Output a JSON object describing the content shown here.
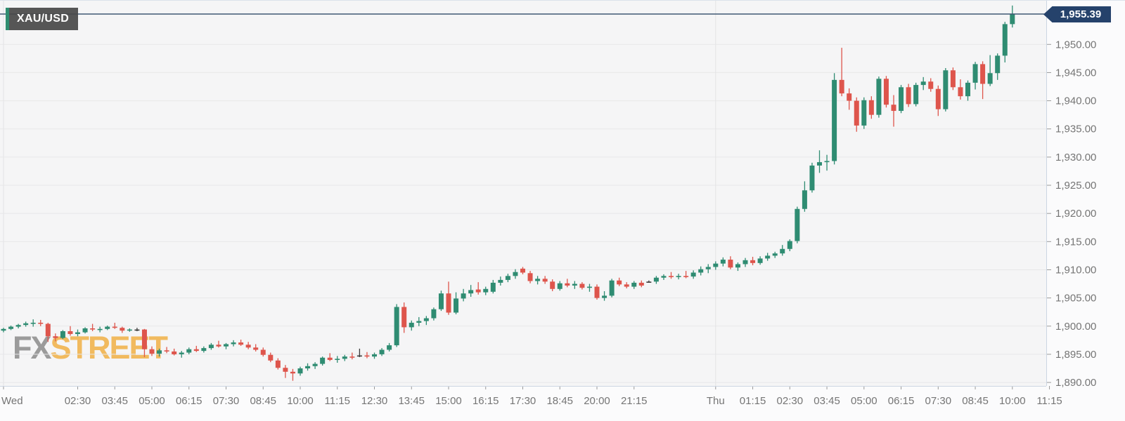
{
  "chart": {
    "symbol": "XAU/USD",
    "last_price": "1,955.39",
    "watermark": {
      "fx": "FX",
      "street": "STREET"
    }
  },
  "colors": {
    "up": "#2f8c72",
    "down": "#de554c",
    "neutral": "#3a3a3a",
    "price_line": "#3f5873",
    "price_badge_bg": "#25426b",
    "grid": "#e8e8e9",
    "day_grid": "#e3e3e5",
    "axis_text": "#757575",
    "tick": "#9a9a9a",
    "border": "#ccd6e2",
    "plot_bg": "#f5f5f6",
    "outer_bg": "#fbfbfc",
    "symbol_badge_bg": "#484848",
    "symbol_badge_accent": "#2f8d70",
    "watermark_gray": "#9b9b9b",
    "watermark_orange": "#f1ba5f"
  },
  "chart_data": {
    "type": "candlestick",
    "symbol": "XAU/USD",
    "timeframe_minutes": 15,
    "last_price": 1955.39,
    "y_axis": {
      "side": "right",
      "min": 1888.0,
      "max": 1957.8,
      "tick_step": 5,
      "ticks": [
        {
          "value": 1950,
          "label": "1,950.00"
        },
        {
          "value": 1945,
          "label": "1,945.00"
        },
        {
          "value": 1940,
          "label": "1,940.00"
        },
        {
          "value": 1935,
          "label": "1,935.00"
        },
        {
          "value": 1930,
          "label": "1,930.00"
        },
        {
          "value": 1925,
          "label": "1,925.00"
        },
        {
          "value": 1920,
          "label": "1,920.00"
        },
        {
          "value": 1915,
          "label": "1,915.00"
        },
        {
          "value": 1910,
          "label": "1,910.00"
        },
        {
          "value": 1905,
          "label": "1,905.00"
        },
        {
          "value": 1900,
          "label": "1,900.00"
        },
        {
          "value": 1895,
          "label": "1,895.00"
        },
        {
          "value": 1890,
          "label": "1,890.00"
        }
      ]
    },
    "x_labels": [
      {
        "label": "Wed",
        "index": 0
      },
      {
        "label": "02:30",
        "index": 10
      },
      {
        "label": "03:45",
        "index": 15
      },
      {
        "label": "05:00",
        "index": 20
      },
      {
        "label": "06:15",
        "index": 25
      },
      {
        "label": "07:30",
        "index": 30
      },
      {
        "label": "08:45",
        "index": 35
      },
      {
        "label": "10:00",
        "index": 40
      },
      {
        "label": "11:15",
        "index": 45
      },
      {
        "label": "12:30",
        "index": 50
      },
      {
        "label": "13:45",
        "index": 55
      },
      {
        "label": "15:00",
        "index": 60
      },
      {
        "label": "16:15",
        "index": 65
      },
      {
        "label": "17:30",
        "index": 70
      },
      {
        "label": "18:45",
        "index": 75
      },
      {
        "label": "20:00",
        "index": 80
      },
      {
        "label": "21:15",
        "index": 85
      },
      {
        "label": "Thu",
        "index": 96
      },
      {
        "label": "01:15",
        "index": 101
      },
      {
        "label": "02:30",
        "index": 106
      },
      {
        "label": "03:45",
        "index": 111
      },
      {
        "label": "05:00",
        "index": 116
      },
      {
        "label": "06:15",
        "index": 121
      },
      {
        "label": "07:30",
        "index": 126
      },
      {
        "label": "08:45",
        "index": 131
      },
      {
        "label": "10:00",
        "index": 136
      },
      {
        "label": "11:15",
        "index": 141
      }
    ],
    "day_gridline_indices": [
      0,
      96
    ],
    "candles_format": [
      "open",
      "high",
      "low",
      "close"
    ],
    "candles": [
      [
        1899.2,
        1899.7,
        1898.9,
        1899.5
      ],
      [
        1899.5,
        1900.1,
        1899.3,
        1899.9
      ],
      [
        1899.9,
        1900.4,
        1899.6,
        1900.2
      ],
      [
        1900.2,
        1900.8,
        1899.9,
        1900.5
      ],
      [
        1900.5,
        1901.2,
        1899.9,
        1900.6
      ],
      [
        1900.6,
        1901.1,
        1900.0,
        1900.4
      ],
      [
        1900.4,
        1900.6,
        1897.2,
        1898.2
      ],
      [
        1898.2,
        1898.7,
        1897.3,
        1897.9
      ],
      [
        1897.9,
        1899.3,
        1897.7,
        1899.1
      ],
      [
        1899.1,
        1900.0,
        1898.3,
        1898.6
      ],
      [
        1898.6,
        1899.4,
        1898.2,
        1898.9
      ],
      [
        1898.9,
        1899.8,
        1898.7,
        1899.6
      ],
      [
        1899.6,
        1900.4,
        1899.1,
        1899.4
      ],
      [
        1899.4,
        1899.9,
        1898.9,
        1899.5
      ],
      [
        1899.5,
        1900.1,
        1899.3,
        1899.9
      ],
      [
        1899.9,
        1900.6,
        1899.5,
        1899.7
      ],
      [
        1899.7,
        1899.9,
        1898.8,
        1899.2
      ],
      [
        1899.2,
        1899.6,
        1899.0,
        1899.4
      ],
      [
        1899.4,
        1899.7,
        1899.1,
        1899.4
      ],
      [
        1899.4,
        1899.5,
        1894.5,
        1895.9
      ],
      [
        1895.9,
        1896.4,
        1894.7,
        1895.1
      ],
      [
        1895.1,
        1896.0,
        1894.6,
        1895.7
      ],
      [
        1895.7,
        1896.3,
        1895.2,
        1895.5
      ],
      [
        1895.5,
        1896.0,
        1894.8,
        1895.0
      ],
      [
        1895.0,
        1895.6,
        1894.4,
        1895.3
      ],
      [
        1895.3,
        1896.2,
        1895.0,
        1895.9
      ],
      [
        1895.9,
        1896.5,
        1895.4,
        1895.6
      ],
      [
        1895.6,
        1896.4,
        1895.3,
        1896.1
      ],
      [
        1896.1,
        1897.0,
        1895.8,
        1896.7
      ],
      [
        1896.7,
        1897.4,
        1896.2,
        1896.4
      ],
      [
        1896.4,
        1897.0,
        1895.9,
        1896.8
      ],
      [
        1896.8,
        1897.5,
        1896.4,
        1897.1
      ],
      [
        1897.1,
        1897.6,
        1896.5,
        1896.7
      ],
      [
        1896.7,
        1897.2,
        1895.9,
        1896.2
      ],
      [
        1896.2,
        1896.8,
        1895.5,
        1895.8
      ],
      [
        1895.8,
        1896.2,
        1894.6,
        1894.9
      ],
      [
        1894.9,
        1895.3,
        1893.6,
        1893.9
      ],
      [
        1893.9,
        1894.3,
        1892.3,
        1892.6
      ],
      [
        1892.6,
        1893.1,
        1890.8,
        1891.9
      ],
      [
        1891.9,
        1892.4,
        1890.3,
        1891.6
      ],
      [
        1891.6,
        1892.8,
        1891.2,
        1892.5
      ],
      [
        1892.5,
        1893.4,
        1892.1,
        1892.9
      ],
      [
        1892.9,
        1893.6,
        1892.4,
        1893.3
      ],
      [
        1893.3,
        1894.6,
        1893.0,
        1894.4
      ],
      [
        1894.4,
        1895.2,
        1893.8,
        1894.0
      ],
      [
        1894.0,
        1894.7,
        1893.5,
        1894.2
      ],
      [
        1894.2,
        1894.9,
        1893.8,
        1894.6
      ],
      [
        1894.6,
        1895.3,
        1894.1,
        1894.4
      ],
      [
        1894.8,
        1896.0,
        1894.5,
        1894.8
      ],
      [
        1894.8,
        1895.4,
        1894.3,
        1894.6
      ],
      [
        1894.6,
        1895.3,
        1894.2,
        1895.0
      ],
      [
        1895.0,
        1896.1,
        1894.7,
        1895.8
      ],
      [
        1895.8,
        1897.0,
        1895.5,
        1896.6
      ],
      [
        1896.6,
        1903.9,
        1896.3,
        1903.4
      ],
      [
        1903.4,
        1904.2,
        1898.8,
        1899.8
      ],
      [
        1899.8,
        1901.0,
        1899.2,
        1900.6
      ],
      [
        1900.6,
        1901.6,
        1900.0,
        1900.9
      ],
      [
        1900.9,
        1901.8,
        1900.2,
        1901.4
      ],
      [
        1901.4,
        1903.3,
        1901.0,
        1903.0
      ],
      [
        1903.0,
        1906.3,
        1902.7,
        1905.8
      ],
      [
        1905.8,
        1907.9,
        1902.0,
        1902.4
      ],
      [
        1902.4,
        1906.0,
        1902.1,
        1904.9
      ],
      [
        1904.9,
        1906.6,
        1904.4,
        1905.8
      ],
      [
        1905.8,
        1907.3,
        1905.2,
        1906.4
      ],
      [
        1906.5,
        1907.8,
        1905.6,
        1906.0
      ],
      [
        1906.0,
        1907.0,
        1905.5,
        1906.6
      ],
      [
        1906.1,
        1908.2,
        1905.8,
        1907.7
      ],
      [
        1907.7,
        1908.8,
        1907.2,
        1908.2
      ],
      [
        1908.2,
        1909.3,
        1907.8,
        1908.9
      ],
      [
        1908.9,
        1910.1,
        1908.4,
        1909.6
      ],
      [
        1910.2,
        1910.5,
        1909.2,
        1909.5
      ],
      [
        1909.4,
        1909.8,
        1907.6,
        1908.0
      ],
      [
        1908.0,
        1908.9,
        1907.4,
        1908.4
      ],
      [
        1908.4,
        1908.9,
        1907.5,
        1907.9
      ],
      [
        1907.9,
        1908.3,
        1906.2,
        1906.6
      ],
      [
        1906.6,
        1908.0,
        1906.3,
        1907.6
      ],
      [
        1907.6,
        1908.4,
        1906.9,
        1907.2
      ],
      [
        1907.2,
        1908.0,
        1906.6,
        1907.5
      ],
      [
        1907.5,
        1907.8,
        1906.5,
        1906.8
      ],
      [
        1906.8,
        1907.5,
        1906.1,
        1907.0
      ],
      [
        1907.0,
        1907.4,
        1904.7,
        1905.0
      ],
      [
        1905.0,
        1906.2,
        1904.5,
        1905.4
      ],
      [
        1905.4,
        1908.4,
        1905.1,
        1908.1
      ],
      [
        1908.1,
        1908.6,
        1907.1,
        1907.4
      ],
      [
        1907.4,
        1907.8,
        1906.7,
        1907.0
      ],
      [
        1907.0,
        1908.0,
        1906.6,
        1907.7
      ],
      [
        1907.7,
        1908.1,
        1906.9,
        1907.2
      ],
      [
        1907.9,
        1908.1,
        1907.7,
        1907.9
      ],
      [
        1907.9,
        1908.9,
        1907.5,
        1908.6
      ],
      [
        1908.6,
        1909.2,
        1908.2,
        1908.9
      ],
      [
        1908.9,
        1909.6,
        1908.4,
        1908.7
      ],
      [
        1908.7,
        1909.3,
        1908.3,
        1908.9
      ],
      [
        1908.9,
        1909.8,
        1908.5,
        1908.8
      ],
      [
        1908.8,
        1909.9,
        1908.4,
        1909.5
      ],
      [
        1909.5,
        1910.6,
        1909.0,
        1910.1
      ],
      [
        1910.1,
        1911.0,
        1909.4,
        1910.5
      ],
      [
        1910.5,
        1911.5,
        1910.0,
        1911.1
      ],
      [
        1911.1,
        1912.2,
        1910.6,
        1911.8
      ],
      [
        1911.8,
        1912.4,
        1910.1,
        1910.4
      ],
      [
        1910.4,
        1911.3,
        1909.8,
        1911.0
      ],
      [
        1911.0,
        1912.1,
        1910.5,
        1911.7
      ],
      [
        1911.7,
        1912.3,
        1910.8,
        1911.2
      ],
      [
        1911.2,
        1912.4,
        1910.9,
        1912.0
      ],
      [
        1912.0,
        1913.0,
        1911.6,
        1912.5
      ],
      [
        1912.5,
        1913.2,
        1912.1,
        1912.9
      ],
      [
        1912.9,
        1914.4,
        1912.5,
        1913.7
      ],
      [
        1913.7,
        1915.4,
        1913.3,
        1915.1
      ],
      [
        1915.1,
        1921.2,
        1914.7,
        1920.8
      ],
      [
        1920.8,
        1925.7,
        1920.3,
        1924.1
      ],
      [
        1924.1,
        1929.0,
        1923.7,
        1928.5
      ],
      [
        1928.5,
        1931.2,
        1927.2,
        1929.1
      ],
      [
        1929.1,
        1930.4,
        1927.6,
        1929.3
      ],
      [
        1929.3,
        1944.9,
        1928.7,
        1943.7
      ],
      [
        1943.7,
        1949.4,
        1940.8,
        1941.3
      ],
      [
        1941.3,
        1942.2,
        1938.4,
        1940.0
      ],
      [
        1940.0,
        1940.6,
        1934.5,
        1935.6
      ],
      [
        1935.6,
        1940.6,
        1935.0,
        1940.1
      ],
      [
        1940.1,
        1940.8,
        1936.8,
        1937.5
      ],
      [
        1937.5,
        1944.3,
        1937.0,
        1943.9
      ],
      [
        1943.9,
        1944.4,
        1938.8,
        1939.3
      ],
      [
        1939.3,
        1941.0,
        1935.4,
        1938.2
      ],
      [
        1938.2,
        1942.8,
        1937.8,
        1942.4
      ],
      [
        1942.4,
        1943.0,
        1938.9,
        1939.4
      ],
      [
        1939.4,
        1943.2,
        1939.0,
        1942.8
      ],
      [
        1942.8,
        1944.2,
        1941.9,
        1943.4
      ],
      [
        1943.4,
        1944.0,
        1941.6,
        1942.1
      ],
      [
        1942.1,
        1942.7,
        1937.3,
        1938.5
      ],
      [
        1938.5,
        1945.8,
        1938.1,
        1945.4
      ],
      [
        1945.4,
        1945.9,
        1941.9,
        1942.4
      ],
      [
        1942.4,
        1943.8,
        1940.2,
        1940.8
      ],
      [
        1940.8,
        1943.6,
        1940.0,
        1943.2
      ],
      [
        1943.2,
        1946.9,
        1942.0,
        1946.5
      ],
      [
        1946.5,
        1947.0,
        1940.3,
        1943.0
      ],
      [
        1943.0,
        1948.1,
        1942.6,
        1944.9
      ],
      [
        1944.9,
        1948.4,
        1943.7,
        1948.0
      ],
      [
        1948.0,
        1954.0,
        1946.8,
        1953.6
      ],
      [
        1953.6,
        1956.9,
        1953.0,
        1955.39
      ]
    ]
  }
}
